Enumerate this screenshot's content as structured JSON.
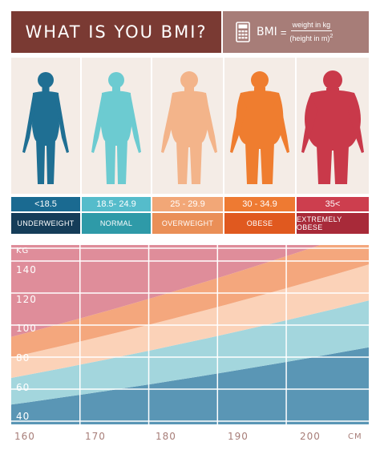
{
  "header": {
    "title": "WHAT IS YOU BMI?",
    "formula": {
      "label": "BMI",
      "equals": "=",
      "numerator": "weight in kg",
      "denominator": "(height in m)",
      "exponent": "2",
      "icon": "calculator-icon"
    }
  },
  "categories": [
    {
      "range": "<18.5",
      "label": "UNDERWEIGHT",
      "figure_color": "#1f6f93",
      "range_color": "#1a6a91",
      "label_color": "#153d59"
    },
    {
      "range": "18.5- 24.9",
      "label": "NORMAL",
      "figure_color": "#6ccbd1",
      "range_color": "#55bccb",
      "label_color": "#2e9aa8"
    },
    {
      "range": "25 - 29.9",
      "label": "OVERWEIGHT",
      "figure_color": "#f3b48a",
      "range_color": "#f2a777",
      "label_color": "#ea8f57"
    },
    {
      "range": "30 - 34.9",
      "label": "OBESE",
      "figure_color": "#ef7d2f",
      "range_color": "#ee7a32",
      "label_color": "#e0591f"
    },
    {
      "range": "35<",
      "label": "EXTREMELY OBESE",
      "figure_color": "#c9394a",
      "range_color": "#cd3e4e",
      "label_color": "#a82a39"
    }
  ],
  "chart": {
    "y_unit": "KG",
    "x_unit": "CM",
    "y_ticks": [
      "140",
      "120",
      "100",
      "80",
      "60",
      "40"
    ],
    "x_ticks": [
      "160",
      "170",
      "180",
      "190",
      "200"
    ],
    "x_range": [
      160,
      212
    ],
    "y_range": [
      35,
      147
    ],
    "band_colors": [
      "#5a96b5",
      "#a3d6dd",
      "#fbd2b8",
      "#f4a77d",
      "#df8d9a"
    ],
    "band_boundaries_bmi": [
      18.5,
      25,
      30,
      35
    ]
  }
}
